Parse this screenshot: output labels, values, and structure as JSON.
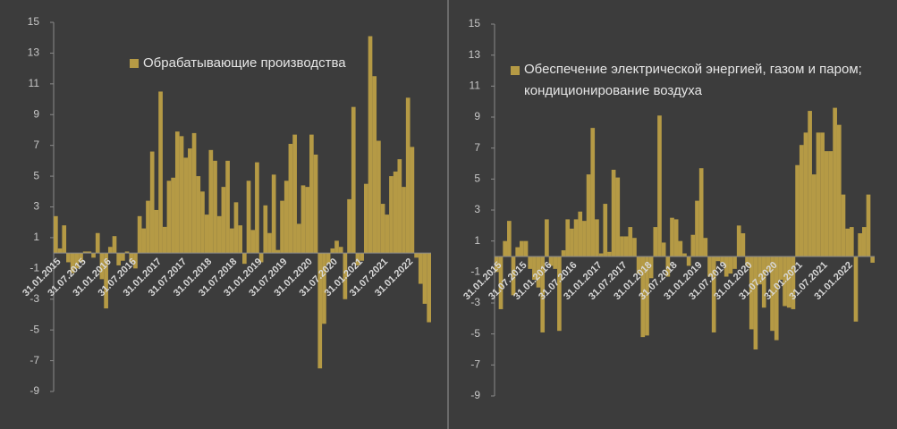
{
  "chart_data": [
    {
      "type": "bar",
      "legend_label": "Обрабатывающие производства",
      "color": "#b59a45",
      "legend": "upper center",
      "categories": [
        "31.01.2015",
        null,
        null,
        null,
        null,
        null,
        "31.07.2015",
        null,
        null,
        null,
        null,
        null,
        "31.01.2016",
        null,
        null,
        null,
        null,
        null,
        "31.07.2016",
        null,
        null,
        null,
        null,
        null,
        "31.01.2017",
        null,
        null,
        null,
        null,
        null,
        "31.07.2017",
        null,
        null,
        null,
        null,
        null,
        "31.01.2018",
        null,
        null,
        null,
        null,
        null,
        "31.07.2018",
        null,
        null,
        null,
        null,
        null,
        "31.01.2019",
        null,
        null,
        null,
        null,
        null,
        "31.07.2019",
        null,
        null,
        null,
        null,
        null,
        "31.01.2020",
        null,
        null,
        null,
        null,
        null,
        "31.07.2020",
        null,
        null,
        null,
        null,
        null,
        "31.01.2021",
        null,
        null,
        null,
        null,
        null,
        "31.07.2021",
        null,
        null,
        null,
        null,
        null,
        "31.01.2022",
        null,
        null,
        null,
        null,
        null
      ],
      "values": [
        2.4,
        0.3,
        1.8,
        -0.6,
        -1.3,
        -1.0,
        -0.6,
        0.1,
        0.1,
        -0.3,
        1.3,
        -1.7,
        -3.6,
        0.4,
        1.1,
        -0.8,
        -0.5,
        0.1,
        -0.6,
        -1.0,
        2.4,
        1.6,
        3.4,
        6.6,
        2.8,
        10.5,
        1.7,
        4.7,
        4.9,
        7.9,
        7.6,
        6.2,
        6.8,
        7.8,
        5.0,
        4.0,
        2.5,
        6.7,
        6.0,
        2.4,
        4.3,
        6.0,
        1.6,
        3.3,
        1.8,
        -0.7,
        4.7,
        1.5,
        5.9,
        -0.6,
        3.1,
        1.3,
        5.1,
        0.2,
        3.4,
        4.7,
        7.1,
        7.7,
        1.9,
        4.4,
        4.3,
        7.7,
        6.4,
        -7.5,
        -4.6,
        -0.7,
        0.3,
        0.8,
        0.4,
        -3.0,
        3.5,
        9.5,
        -0.8,
        -0.5,
        4.5,
        14.1,
        11.5,
        7.3,
        3.2,
        2.5,
        5.0,
        5.3,
        6.1,
        4.3,
        10.1,
        6.9,
        -0.3,
        -2.0,
        -3.3,
        -4.5
      ],
      "ylim": [
        -9,
        15
      ],
      "yticks": [
        -9,
        -7,
        -5,
        -3,
        -1,
        1,
        3,
        5,
        7,
        9,
        11,
        13,
        15
      ]
    },
    {
      "type": "bar",
      "legend_label": "Обеспечение электрической энергией, газом и паром; кондиционирование воздуха",
      "color": "#b59a45",
      "legend": "upper center",
      "categories": [
        "31.01.2015",
        null,
        null,
        null,
        null,
        null,
        "31.07.2015",
        null,
        null,
        null,
        null,
        null,
        "31.01.2016",
        null,
        null,
        null,
        null,
        null,
        "31.07.2016",
        null,
        null,
        null,
        null,
        null,
        "31.01.2017",
        null,
        null,
        null,
        null,
        null,
        "31.07.2017",
        null,
        null,
        null,
        null,
        null,
        "31.01.2018",
        null,
        null,
        null,
        null,
        null,
        "31.07.2018",
        null,
        null,
        null,
        null,
        null,
        "31.01.2019",
        null,
        null,
        null,
        null,
        null,
        "31.07.2019",
        null,
        null,
        null,
        null,
        null,
        "31.01.2020",
        null,
        null,
        null,
        null,
        null,
        "31.07.2020",
        null,
        null,
        null,
        null,
        null,
        "31.01.2021",
        null,
        null,
        null,
        null,
        null,
        "31.07.2021",
        null,
        null,
        null,
        null,
        null,
        "31.01.2022",
        null,
        null,
        null,
        null,
        null,
        null
      ],
      "values": [
        -1.0,
        -3.4,
        1.0,
        2.3,
        -2.5,
        0.6,
        1.0,
        1.0,
        -0.8,
        -1.5,
        -2.0,
        -4.9,
        2.4,
        -0.6,
        -0.8,
        -4.8,
        0.4,
        2.4,
        1.8,
        2.4,
        2.9,
        2.3,
        5.3,
        8.3,
        2.4,
        0.2,
        3.4,
        0.3,
        5.6,
        5.1,
        1.3,
        1.3,
        1.9,
        1.2,
        -1.1,
        -5.2,
        -5.1,
        -1.4,
        1.9,
        9.1,
        0.9,
        -1.3,
        2.5,
        2.4,
        1.0,
        0.2,
        -0.6,
        1.4,
        3.6,
        5.7,
        1.2,
        -1.3,
        -4.9,
        -0.3,
        -0.4,
        -1.3,
        -1.1,
        -0.8,
        2.0,
        1.5,
        -0.6,
        -4.7,
        -6.0,
        -1.8,
        -3.3,
        -1.0,
        -4.8,
        -5.4,
        -1.5,
        -3.2,
        -3.3,
        -3.4,
        5.9,
        7.2,
        8.0,
        9.4,
        5.3,
        8.0,
        8.0,
        6.8,
        6.8,
        9.6,
        8.5,
        4.0,
        1.8,
        1.9,
        -4.2,
        1.5,
        1.9,
        4.0,
        -0.4
      ],
      "ylim": [
        -9,
        15
      ],
      "yticks": [
        -9,
        -7,
        -5,
        -3,
        -1,
        1,
        3,
        5,
        7,
        9,
        11,
        13,
        15
      ]
    }
  ]
}
